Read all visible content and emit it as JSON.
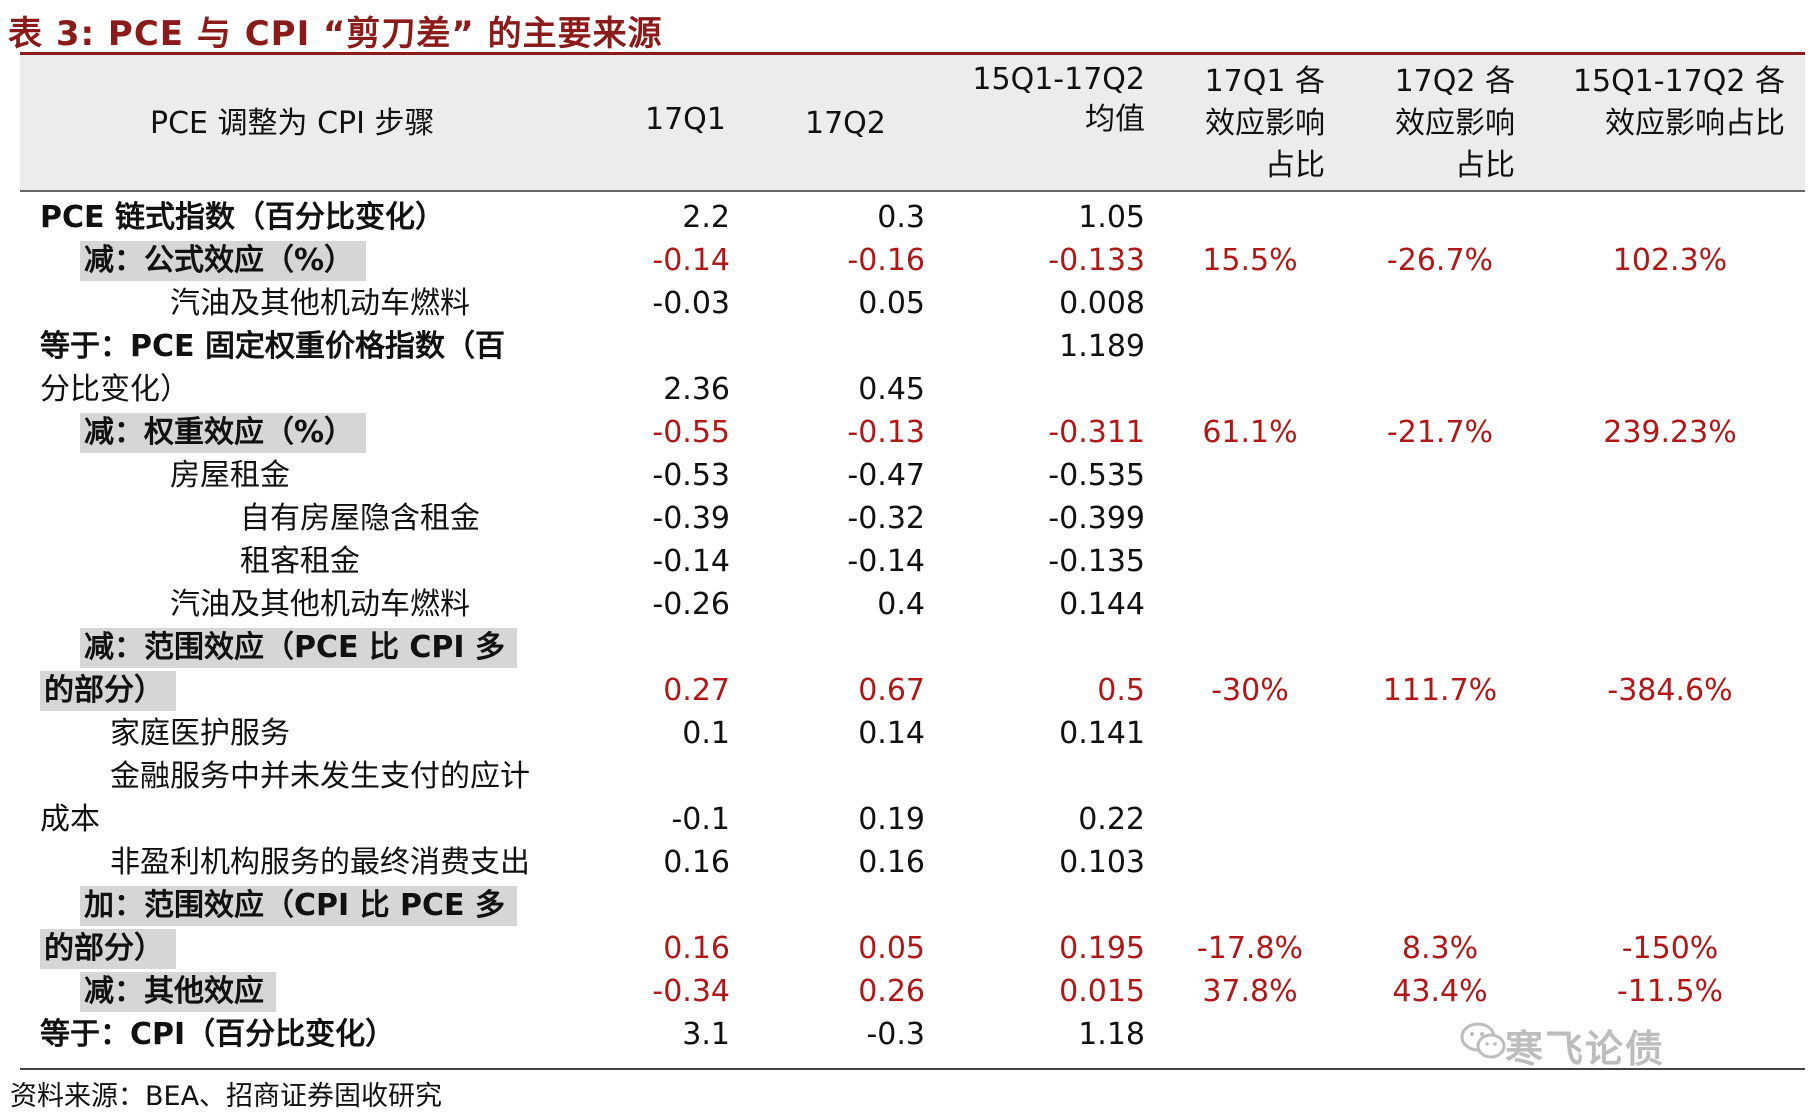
{
  "title": "表 3:  PCE 与 CPI “剪刀差” 的主要来源",
  "header": {
    "col0": "PCE 调整为 CPI 步骤",
    "col1": "17Q1",
    "col2": "17Q2",
    "col3_l1": "15Q1-17Q2",
    "col3_l2": "均值",
    "col4_l1": "17Q1 各",
    "col4_l2": "效应影响",
    "col4_l3": "占比",
    "col5_l1": "17Q2 各",
    "col5_l2": "效应影响",
    "col5_l3": "占比",
    "col6_l1": "15Q1-17Q2 各",
    "col6_l2": "效应影响占比"
  },
  "rows": [
    {
      "label": "PCE  链式指数（百分比变化）",
      "q1": "2.2",
      "q2": "0.3",
      "avg": "1.05",
      "p1": "",
      "p2": "",
      "p3": ""
    },
    {
      "label": "减：公式效应（%）",
      "q1": "-0.14",
      "q2": "-0.16",
      "avg": "-0.133",
      "p1": "15.5%",
      "p2": "-26.7%",
      "p3": "102.3%"
    },
    {
      "label": "汽油及其他机动车燃料",
      "q1": "-0.03",
      "q2": "0.05",
      "avg": "0.008",
      "p1": "",
      "p2": "",
      "p3": ""
    },
    {
      "label": "等于：PCE  固定权重价格指数（百",
      "q1": "",
      "q2": "",
      "avg": "1.189",
      "p1": "",
      "p2": "",
      "p3": ""
    },
    {
      "label": "分比变化）",
      "q1": "2.36",
      "q2": "0.45",
      "avg": "",
      "p1": "",
      "p2": "",
      "p3": ""
    },
    {
      "label": "减：权重效应（%）",
      "q1": "-0.55",
      "q2": "-0.13",
      "avg": "-0.311",
      "p1": "61.1%",
      "p2": "-21.7%",
      "p3": "239.23%"
    },
    {
      "label": "房屋租金",
      "q1": "-0.53",
      "q2": "-0.47",
      "avg": "-0.535",
      "p1": "",
      "p2": "",
      "p3": ""
    },
    {
      "label": "自有房屋隐含租金",
      "q1": "-0.39",
      "q2": "-0.32",
      "avg": "-0.399",
      "p1": "",
      "p2": "",
      "p3": ""
    },
    {
      "label": "租客租金",
      "q1": "-0.14",
      "q2": "-0.14",
      "avg": "-0.135",
      "p1": "",
      "p2": "",
      "p3": ""
    },
    {
      "label": "汽油及其他机动车燃料",
      "q1": "-0.26",
      "q2": "0.4",
      "avg": "0.144",
      "p1": "",
      "p2": "",
      "p3": ""
    },
    {
      "label": "减：范围效应（PCE 比 CPI 多",
      "q1": "",
      "q2": "",
      "avg": "",
      "p1": "",
      "p2": "",
      "p3": ""
    },
    {
      "label": "的部分）",
      "q1": "0.27",
      "q2": "0.67",
      "avg": "0.5",
      "p1": "-30%",
      "p2": "111.7%",
      "p3": "-384.6%"
    },
    {
      "label": "家庭医护服务",
      "q1": "0.1",
      "q2": "0.14",
      "avg": "0.141",
      "p1": "",
      "p2": "",
      "p3": ""
    },
    {
      "label": "金融服务中并未发生支付的应计",
      "q1": "",
      "q2": "",
      "avg": "",
      "p1": "",
      "p2": "",
      "p3": ""
    },
    {
      "label": "成本",
      "q1": "-0.1",
      "q2": "0.19",
      "avg": "0.22",
      "p1": "",
      "p2": "",
      "p3": ""
    },
    {
      "label": "非盈利机构服务的最终消费支出",
      "q1": "0.16",
      "q2": "0.16",
      "avg": "0.103",
      "p1": "",
      "p2": "",
      "p3": ""
    },
    {
      "label": "加：范围效应（CPI 比 PCE 多",
      "q1": "",
      "q2": "",
      "avg": "",
      "p1": "",
      "p2": "",
      "p3": ""
    },
    {
      "label": "的部分）",
      "q1": "0.16",
      "q2": "0.05",
      "avg": "0.195",
      "p1": "-17.8%",
      "p2": "8.3%",
      "p3": "-150%"
    },
    {
      "label": "减：其他效应",
      "q1": "-0.34",
      "q2": "0.26",
      "avg": "0.015",
      "p1": "37.8%",
      "p2": "43.4%",
      "p3": "-11.5%"
    },
    {
      "label": "等于：CPI（百分比变化）",
      "q1": "3.1",
      "q2": "-0.3",
      "avg": "1.18",
      "p1": "",
      "p2": "",
      "p3": ""
    }
  ],
  "source": "资料来源：BEA、招商证券固收研究",
  "watermark": "寒飞论债",
  "colors": {
    "title": "#8b1a1a",
    "red_value": "#b01818",
    "shade": "#d6d6d6",
    "header_bg": "#ececec"
  },
  "icons": {
    "watermark": "wechat-icon"
  }
}
